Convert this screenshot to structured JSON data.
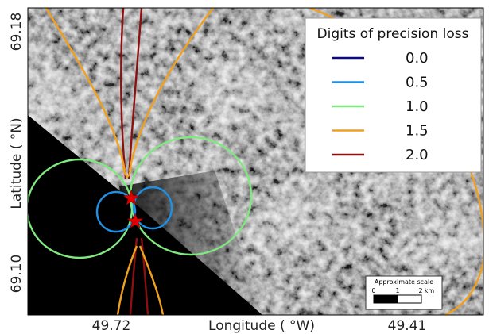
{
  "chart_data": {
    "type": "map-contour",
    "xlabel": "Longitude ( °W)",
    "ylabel": "Latitude ( °N)",
    "x_ticks": [
      "49.72",
      "49.41"
    ],
    "y_ticks": [
      "69.18",
      "69.10"
    ],
    "legend": {
      "title": "Digits of precision loss",
      "placement": "top-right",
      "entries": [
        {
          "label": "0.0",
          "color": "#0a0a7a"
        },
        {
          "label": "0.5",
          "color": "#1e90e6"
        },
        {
          "label": "1.0",
          "color": "#7fe87f"
        },
        {
          "label": "1.5",
          "color": "#f0a01e"
        },
        {
          "label": "2.0",
          "color": "#8b1010"
        }
      ]
    },
    "stations": [
      {
        "marker": "star",
        "color": "#e00000"
      },
      {
        "marker": "star",
        "color": "#e00000"
      }
    ],
    "scale_bar": {
      "title": "Approximate scale",
      "labels": [
        "0",
        "1",
        "2"
      ],
      "unit": "km"
    },
    "background": "grayscale satellite image"
  }
}
